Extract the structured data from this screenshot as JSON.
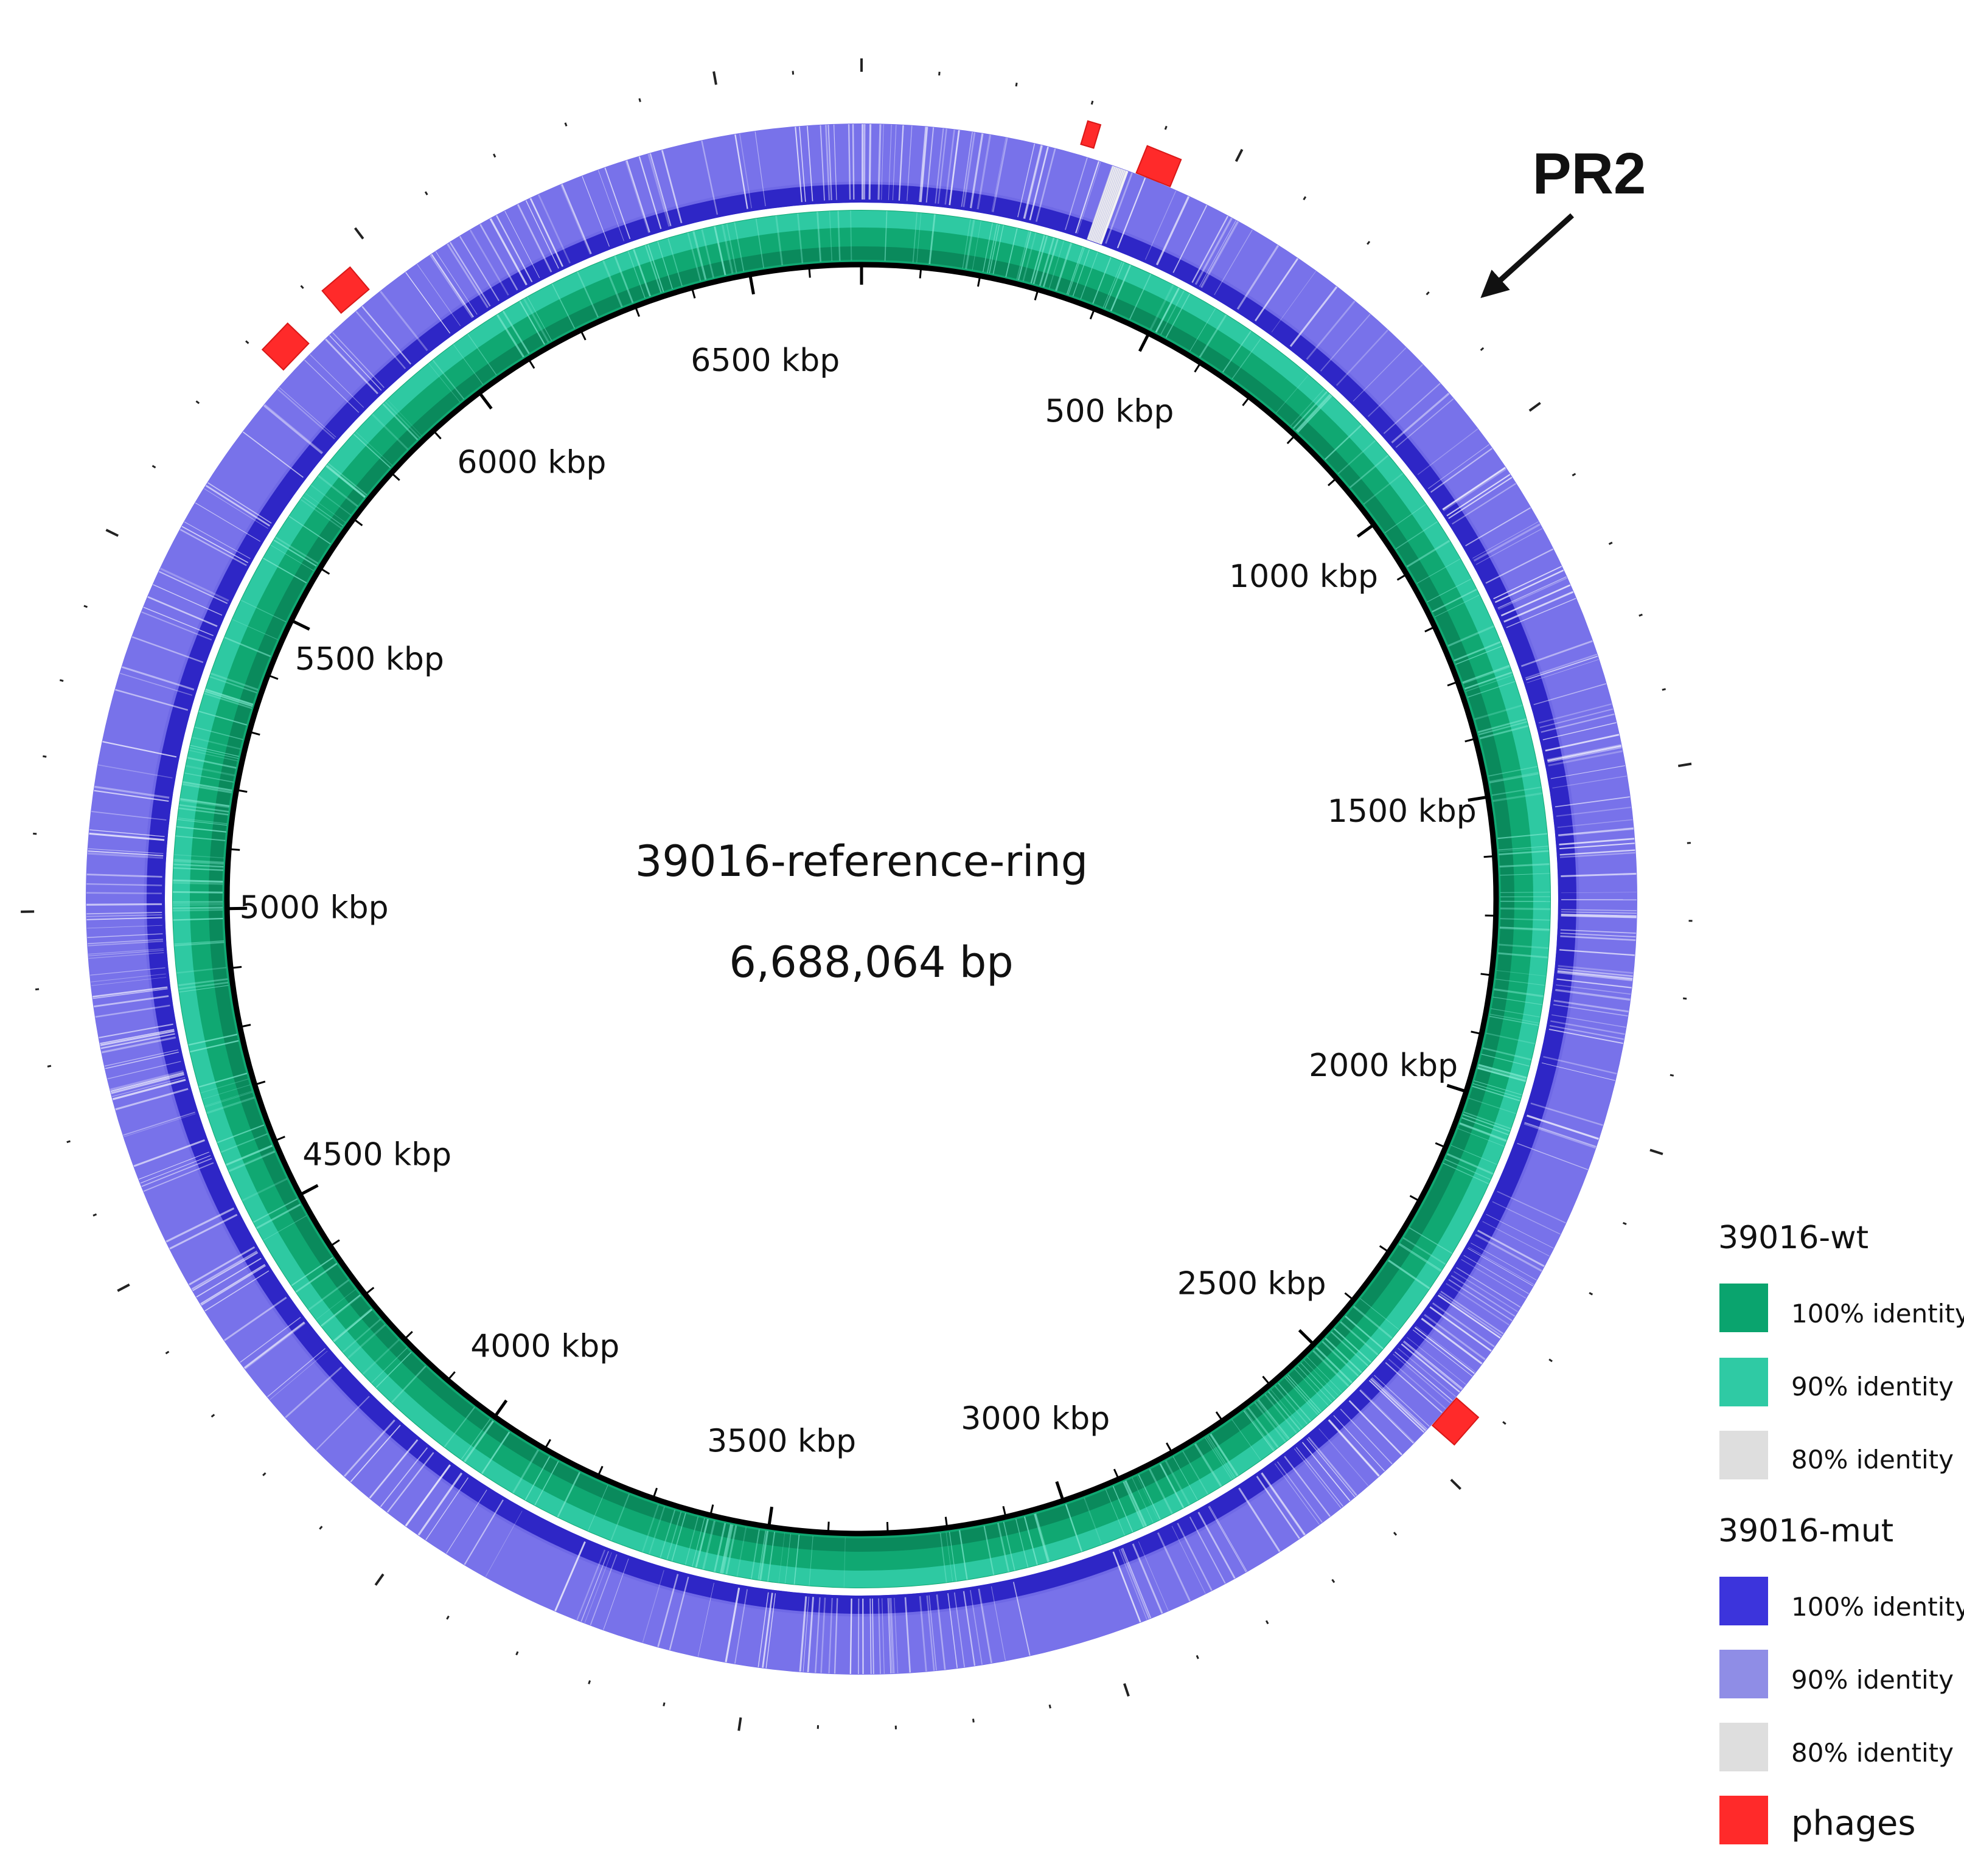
{
  "diagram": {
    "title": "39016-reference-ring",
    "genome_size": "6,688,064 bp",
    "genome_length_bp": 6688064,
    "tick_labels": [
      "500 kbp",
      "1000 kbp",
      "1500 kbp",
      "2000 kbp",
      "2500 kbp",
      "3000 kbp",
      "3500 kbp",
      "4000 kbp",
      "4500 kbp",
      "5000 kbp",
      "5500 kbp",
      "6000 kbp",
      "6500 kbp"
    ],
    "tick_positions_kbp": [
      500,
      1000,
      1500,
      2000,
      2500,
      3000,
      3500,
      4000,
      4500,
      5000,
      5500,
      6000,
      6500
    ],
    "callout": "PR2",
    "rings": [
      {
        "name": "39016-wt",
        "color": "#0aa46e",
        "light_color": "#2fcaa4"
      },
      {
        "name": "39016-mut",
        "color": "#3c34dc",
        "light_color": "#8f8de6"
      }
    ],
    "phages_kbp": [
      310,
      410,
      2440,
      5830,
      5940
    ],
    "phage_color": "#ff2a2a"
  },
  "legend": {
    "wt_title": "39016-wt",
    "wt_items": [
      {
        "label": "100% identity",
        "color": "#0aa46e"
      },
      {
        "label": "90% identity",
        "color": "#2fcaa4"
      },
      {
        "label": "80% identity",
        "color": "#dedede"
      }
    ],
    "mut_title": "39016-mut",
    "mut_items": [
      {
        "label": "100% identity",
        "color": "#3c34dc"
      },
      {
        "label": "90% identity",
        "color": "#8f8de6"
      },
      {
        "label": "80% identity",
        "color": "#dedede"
      }
    ],
    "phages_label": "phages",
    "phages_color": "#ff2a2a"
  }
}
